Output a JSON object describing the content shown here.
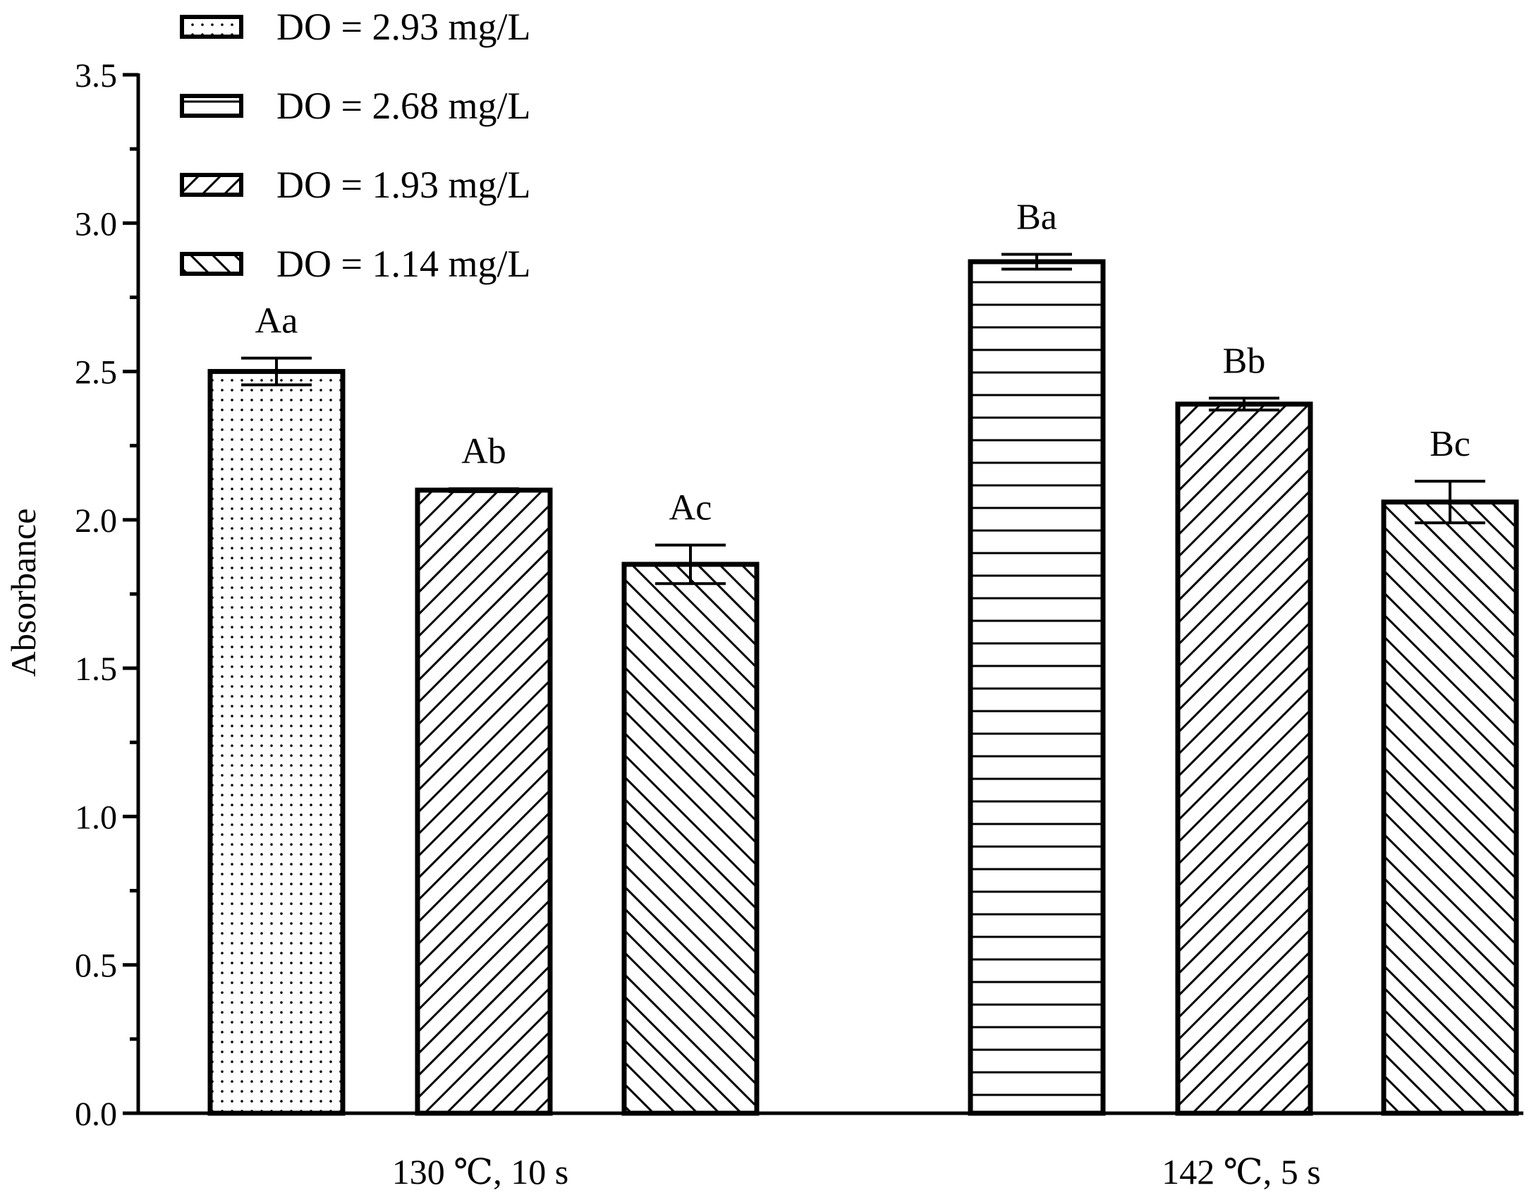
{
  "chart_data": {
    "type": "bar",
    "title": "",
    "xlabel": "",
    "ylabel": "Absorbance",
    "ylim": [
      0,
      3.5
    ],
    "yticks": [
      "0.0",
      "0.5",
      "1.0",
      "1.5",
      "2.0",
      "2.5",
      "3.0",
      "3.5"
    ],
    "grid": false,
    "legend_position": "top-left",
    "legend": [
      {
        "label": "DO = 2.93 mg/L",
        "pattern": "dots"
      },
      {
        "label": "DO = 2.68 mg/L",
        "pattern": "horizontal"
      },
      {
        "label": "DO = 1.93 mg/L",
        "pattern": "diag-right"
      },
      {
        "label": "DO = 1.14 mg/L",
        "pattern": "diag-left"
      }
    ],
    "groups": [
      {
        "label": "130 ℃,  10 s",
        "bars": [
          {
            "series": "DO = 2.93 mg/L",
            "pattern": "dots",
            "value": 2.5,
            "error": 0.045,
            "annotation": "Aa"
          },
          {
            "series": "DO = 1.93 mg/L",
            "pattern": "diag-right",
            "value": 2.1,
            "error": 0.005,
            "annotation": "Ab"
          },
          {
            "series": "DO = 1.14 mg/L",
            "pattern": "diag-left",
            "value": 1.85,
            "error": 0.065,
            "annotation": "Ac"
          }
        ]
      },
      {
        "label": "142 ℃,  5 s",
        "bars": [
          {
            "series": "DO = 2.68 mg/L",
            "pattern": "horizontal",
            "value": 2.87,
            "error": 0.025,
            "annotation": "Ba"
          },
          {
            "series": "DO = 1.93 mg/L",
            "pattern": "diag-right",
            "value": 2.39,
            "error": 0.02,
            "annotation": "Bb"
          },
          {
            "series": "DO = 1.14 mg/L",
            "pattern": "diag-left",
            "value": 2.06,
            "error": 0.07,
            "annotation": "Bc"
          }
        ]
      }
    ],
    "colors": {
      "stroke": "#000000",
      "fill": "#ffffff"
    }
  }
}
